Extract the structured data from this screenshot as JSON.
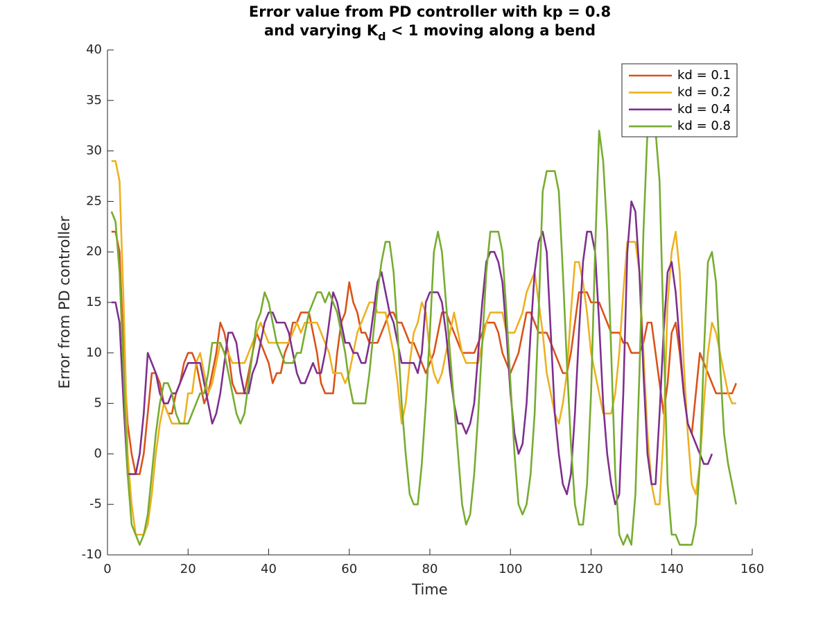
{
  "chart_data": {
    "type": "line",
    "title": {
      "line1": "Error value from PD controller with kp = 0.8",
      "line2": [
        "and varying K",
        "d",
        " < 1 moving along a bend"
      ]
    },
    "x_label": "Time",
    "y_label": "Error from PD controller",
    "xlim": [
      0,
      160
    ],
    "xticks": [
      0,
      20,
      40,
      60,
      80,
      100,
      120,
      140,
      160
    ],
    "ylim": [
      -10,
      40
    ],
    "yticks": [
      -10,
      -5,
      0,
      5,
      10,
      15,
      20,
      25,
      30,
      35,
      40
    ],
    "legend_position": "upper-right",
    "x": [
      1,
      2,
      3,
      4,
      5,
      6,
      7,
      8,
      9,
      10,
      11,
      12,
      13,
      14,
      15,
      16,
      17,
      18,
      19,
      20,
      21,
      22,
      23,
      24,
      25,
      26,
      27,
      28,
      29,
      30,
      31,
      32,
      33,
      34,
      35,
      36,
      37,
      38,
      39,
      40,
      41,
      42,
      43,
      44,
      45,
      46,
      47,
      48,
      49,
      50,
      51,
      52,
      53,
      54,
      55,
      56,
      57,
      58,
      59,
      60,
      61,
      62,
      63,
      64,
      65,
      66,
      67,
      68,
      69,
      70,
      71,
      72,
      73,
      74,
      75,
      76,
      77,
      78,
      79,
      80,
      81,
      82,
      83,
      84,
      85,
      86,
      87,
      88,
      89,
      90,
      91,
      92,
      93,
      94,
      95,
      96,
      97,
      98,
      99,
      100,
      101,
      102,
      103,
      104,
      105,
      106,
      107,
      108,
      109,
      110,
      111,
      112,
      113,
      114,
      115,
      116,
      117,
      118,
      119,
      120,
      121,
      122,
      123,
      124,
      125,
      126,
      127,
      128,
      129,
      130,
      131,
      132,
      133,
      134,
      135,
      136,
      137,
      138,
      139,
      140,
      141,
      142,
      143,
      144,
      145,
      146,
      147,
      148,
      149,
      150,
      151,
      152,
      153,
      154,
      155,
      156
    ],
    "series": [
      {
        "name": "kd = 0.1",
        "color": "#D95319",
        "values": [
          22,
          22,
          20,
          10,
          3,
          0,
          -2,
          -2,
          0,
          4,
          8,
          8,
          7,
          5,
          4,
          4,
          6,
          7,
          9,
          10,
          10,
          9,
          7,
          5,
          6,
          8,
          10,
          13,
          12,
          10,
          7,
          6,
          6,
          6,
          8,
          10,
          12,
          11,
          10,
          9,
          7,
          8,
          8,
          10,
          11,
          13,
          13,
          14,
          14,
          14,
          12,
          10,
          7,
          6,
          6,
          6,
          10,
          13,
          14,
          17,
          15,
          14,
          12,
          12,
          11,
          11,
          11,
          12,
          13,
          14,
          14,
          13,
          13,
          12,
          11,
          11,
          10,
          9,
          8,
          9,
          10,
          12,
          14,
          14,
          13,
          12,
          11,
          10,
          10,
          10,
          10,
          11,
          12,
          13,
          13,
          13,
          12,
          10,
          9,
          8,
          9,
          10,
          12,
          14,
          14,
          13,
          12,
          12,
          12,
          11,
          10,
          9,
          8,
          8,
          10,
          13,
          16,
          16,
          16,
          15,
          15,
          15,
          14,
          13,
          12,
          12,
          12,
          11,
          11,
          10,
          10,
          10,
          11,
          13,
          13,
          10,
          7,
          4,
          7,
          12,
          13,
          10,
          6,
          3,
          2,
          6,
          10,
          9,
          8,
          7,
          6,
          6,
          6,
          6,
          6,
          7
        ]
      },
      {
        "name": "kd = 0.2",
        "color": "#EDB120",
        "values": [
          29,
          29,
          27,
          15,
          0,
          -5,
          -8,
          -8,
          -8,
          -7,
          -4,
          0,
          3,
          5,
          4,
          3,
          3,
          3,
          3,
          6,
          6,
          9,
          10,
          8,
          6,
          7,
          9,
          11,
          10,
          10,
          9,
          9,
          9,
          9,
          10,
          11,
          12,
          13,
          12,
          11,
          11,
          11,
          11,
          11,
          11,
          12,
          13,
          12,
          13,
          13,
          13,
          13,
          12,
          11,
          10,
          8,
          8,
          8,
          7,
          8,
          10,
          12,
          13,
          14,
          15,
          15,
          14,
          14,
          14,
          12,
          10,
          7,
          3,
          5,
          9,
          12,
          13,
          15,
          14,
          10,
          8,
          7,
          8,
          10,
          12,
          14,
          12,
          10,
          9,
          9,
          9,
          9,
          11,
          13,
          14,
          14,
          14,
          14,
          12,
          12,
          12,
          13,
          14,
          16,
          17,
          18,
          15,
          12,
          8,
          6,
          4,
          3,
          5,
          8,
          14,
          19,
          19,
          17,
          14,
          10,
          8,
          6,
          4,
          4,
          4,
          6,
          10,
          16,
          21,
          21,
          21,
          18,
          10,
          2,
          -3,
          -5,
          -5,
          2,
          15,
          20,
          22,
          18,
          9,
          2,
          -3,
          -4,
          -1,
          5,
          10,
          13,
          12,
          10,
          8,
          6,
          5,
          5
        ]
      },
      {
        "name": "kd = 0.4",
        "color": "#7E2F8E",
        "values": [
          15,
          15,
          13,
          5,
          -2,
          -2,
          -2,
          0,
          4,
          10,
          9,
          8,
          6,
          5,
          5,
          6,
          6,
          7,
          8,
          9,
          9,
          9,
          9,
          7,
          5,
          3,
          4,
          6,
          9,
          12,
          12,
          11,
          8,
          6,
          6,
          8,
          9,
          11,
          13,
          14,
          14,
          13,
          13,
          13,
          12,
          10,
          8,
          7,
          7,
          8,
          9,
          8,
          8,
          10,
          13,
          16,
          15,
          13,
          11,
          11,
          10,
          10,
          9,
          9,
          11,
          14,
          17,
          18,
          16,
          14,
          13,
          11,
          9,
          9,
          9,
          9,
          8,
          10,
          15,
          16,
          16,
          16,
          15,
          12,
          8,
          5,
          3,
          3,
          2,
          3,
          5,
          10,
          15,
          19,
          20,
          20,
          19,
          17,
          12,
          6,
          2,
          0,
          1,
          5,
          12,
          18,
          21,
          22,
          20,
          12,
          4,
          0,
          -3,
          -4,
          -2,
          4,
          12,
          19,
          22,
          22,
          20,
          13,
          5,
          0,
          -3,
          -5,
          -4,
          6,
          20,
          25,
          24,
          18,
          8,
          0,
          -3,
          -3,
          4,
          12,
          18,
          19,
          16,
          11,
          6,
          3,
          2,
          1,
          0,
          -1,
          -1,
          0,
          null,
          null,
          null,
          null,
          null,
          null
        ]
      },
      {
        "name": "kd = 0.8",
        "color": "#77AC30",
        "values": [
          24,
          23,
          18,
          8,
          -2,
          -7,
          -8,
          -9,
          -8,
          -6,
          -2,
          2,
          5,
          7,
          7,
          6,
          4,
          3,
          3,
          3,
          4,
          5,
          6,
          6,
          8,
          11,
          11,
          11,
          10,
          8,
          6,
          4,
          3,
          4,
          7,
          10,
          13,
          14,
          16,
          15,
          13,
          11,
          10,
          9,
          9,
          9,
          10,
          10,
          12,
          14,
          15,
          16,
          16,
          15,
          16,
          15,
          14,
          12,
          10,
          7,
          5,
          5,
          5,
          5,
          8,
          12,
          16,
          19,
          21,
          21,
          18,
          12,
          5,
          0,
          -4,
          -5,
          -5,
          -1,
          5,
          12,
          20,
          22,
          20,
          15,
          10,
          5,
          0,
          -5,
          -7,
          -6,
          -2,
          4,
          11,
          18,
          22,
          22,
          22,
          20,
          14,
          7,
          0,
          -5,
          -6,
          -5,
          -2,
          4,
          14,
          26,
          28,
          28,
          28,
          26,
          18,
          9,
          1,
          -5,
          -7,
          -7,
          -3,
          6,
          20,
          32,
          29,
          22,
          10,
          -2,
          -8,
          -9,
          -8,
          -9,
          -4,
          8,
          22,
          32,
          33,
          32,
          27,
          12,
          -3,
          -8,
          -8,
          -9,
          -9,
          -9,
          -9,
          -7,
          -1,
          10,
          19,
          20,
          17,
          9,
          2,
          -1,
          -3,
          -5
        ]
      }
    ]
  }
}
